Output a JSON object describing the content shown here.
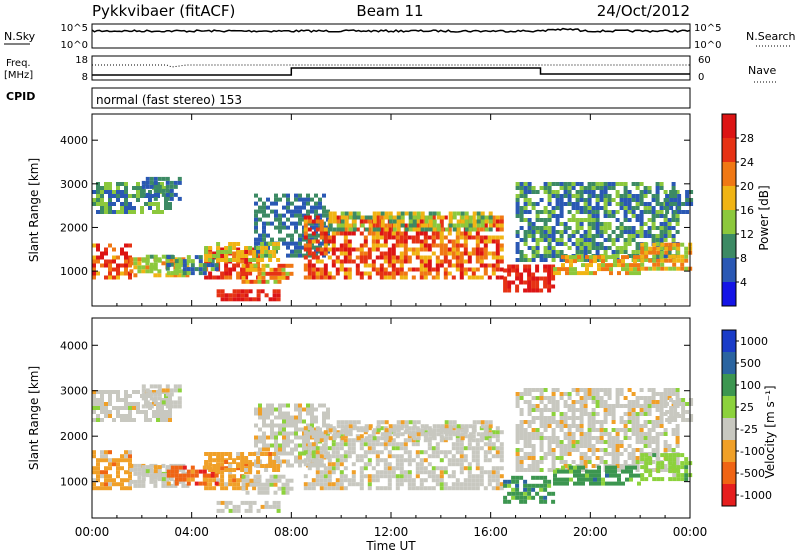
{
  "header": {
    "station": "Pykkvibaer (fitACF)",
    "beam": "Beam 11",
    "date": "24/Oct/2012"
  },
  "nsky": {
    "label": "N.Sky",
    "ticks": [
      "10^5",
      "10^0"
    ],
    "right_label": "N.Search",
    "right_ticks": [
      "10^5",
      "10^0"
    ]
  },
  "freq": {
    "label_line1": "Freq.",
    "label_line2": "[MHz]",
    "ticks": [
      "18",
      "8"
    ],
    "right_label": "Nave",
    "right_ticks": [
      "60",
      "0"
    ]
  },
  "cpid": {
    "label": "CPID",
    "program": "normal (fast stereo) 153"
  },
  "chart_data": [
    {
      "type": "heatmap",
      "name": "power",
      "ylabel": "Slant Range [km]",
      "ylim": [
        200,
        4600
      ],
      "yticks": [
        "1000",
        "2000",
        "3000",
        "4000"
      ],
      "colorbar_label": "Power [dB]",
      "colorbar_ticks": [
        "4",
        "8",
        "12",
        "16",
        "20",
        "24",
        "28"
      ],
      "colors": [
        "#1414e6",
        "#2a58b4",
        "#3c8a64",
        "#8cc83c",
        "#f0b414",
        "#f07814",
        "#e63214",
        "#dc1414"
      ]
    },
    {
      "type": "heatmap",
      "name": "velocity",
      "ylabel": "Slant Range [km]",
      "ylim": [
        200,
        4600
      ],
      "yticks": [
        "1000",
        "2000",
        "3000",
        "4000"
      ],
      "colorbar_label": "Velocity [m s⁻¹]",
      "colorbar_ticks": [
        "1000",
        "500",
        "100",
        "25",
        "-25",
        "-100",
        "-500",
        "-1000"
      ],
      "colors": [
        "#1a3cc8",
        "#2a64a0",
        "#3c9650",
        "#8cd23c",
        "#c8c8c0",
        "#f0a028",
        "#f06414",
        "#e61e1e"
      ]
    }
  ],
  "xaxis": {
    "label": "Time UT",
    "ticks": [
      "00:00",
      "04:00",
      "08:00",
      "12:00",
      "16:00",
      "20:00",
      "00:00"
    ]
  }
}
